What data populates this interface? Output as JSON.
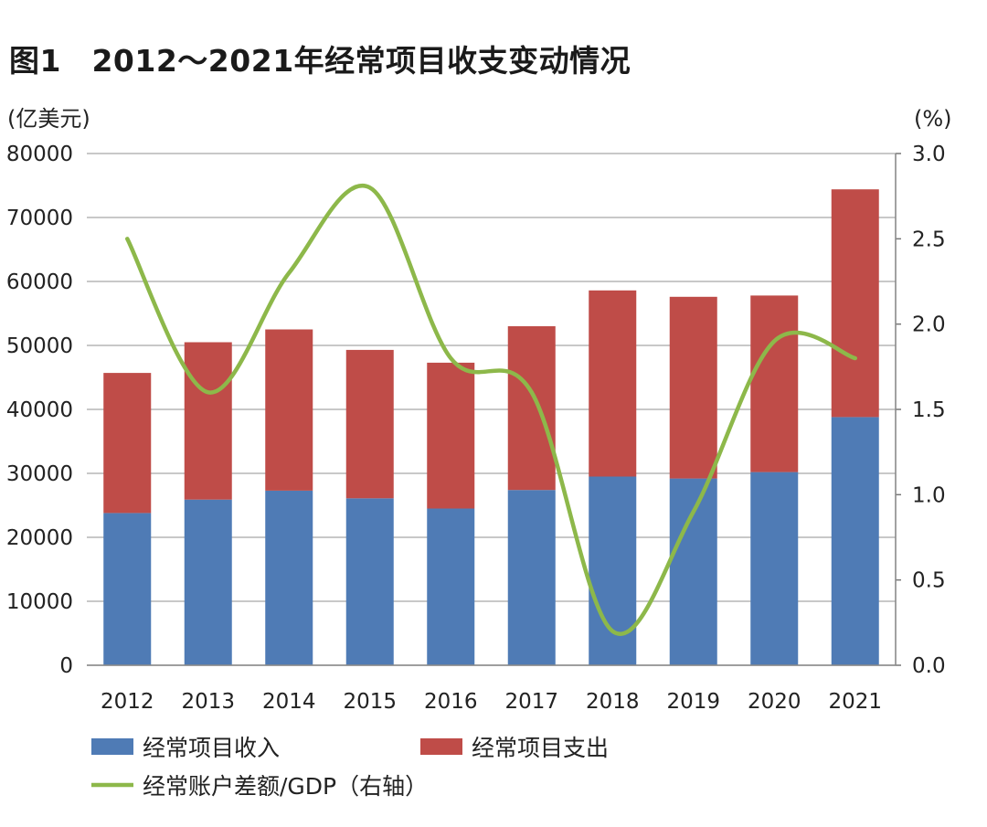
{
  "title": "图1　2012～2021年经常项目收支变动情况",
  "chart_data": {
    "type": "bar",
    "stacked": true,
    "categories": [
      "2012",
      "2013",
      "2014",
      "2015",
      "2016",
      "2017",
      "2018",
      "2019",
      "2020",
      "2021"
    ],
    "series": [
      {
        "name": "经常项目收入",
        "axis": "left",
        "color": "#4f7bb5",
        "values": [
          23800,
          25900,
          27300,
          26100,
          24500,
          27400,
          29500,
          29200,
          30200,
          38800
        ]
      },
      {
        "name": "经常项目支出",
        "axis": "left",
        "color": "#bf4c48",
        "values": [
          21900,
          24600,
          25200,
          23200,
          22800,
          25600,
          29100,
          28400,
          27600,
          35600
        ]
      },
      {
        "name": "经常账户差额/GDP（右轴）",
        "type": "line",
        "axis": "right",
        "color": "#8db84a",
        "values": [
          2.5,
          1.6,
          2.3,
          2.8,
          1.8,
          1.6,
          0.2,
          0.9,
          1.9,
          1.8
        ]
      }
    ],
    "left_axis": {
      "unit": "(亿美元)",
      "ylim": [
        0,
        80000
      ],
      "ticks": [
        "0",
        "10000",
        "20000",
        "30000",
        "40000",
        "50000",
        "60000",
        "70000",
        "80000"
      ]
    },
    "right_axis": {
      "unit": "(%)",
      "ylim": [
        0,
        3.0
      ],
      "ticks": [
        "0.0",
        "0.5",
        "1.0",
        "1.5",
        "2.0",
        "2.5",
        "3.0"
      ]
    },
    "grid": true,
    "legend": [
      {
        "label": "经常项目收入",
        "kind": "box",
        "color": "#4f7bb5"
      },
      {
        "label": "经常项目支出",
        "kind": "box",
        "color": "#bf4c48"
      },
      {
        "label": "经常账户差额/GDP（右轴）",
        "kind": "line",
        "color": "#8db84a"
      }
    ],
    "legend_position": "bottom"
  }
}
